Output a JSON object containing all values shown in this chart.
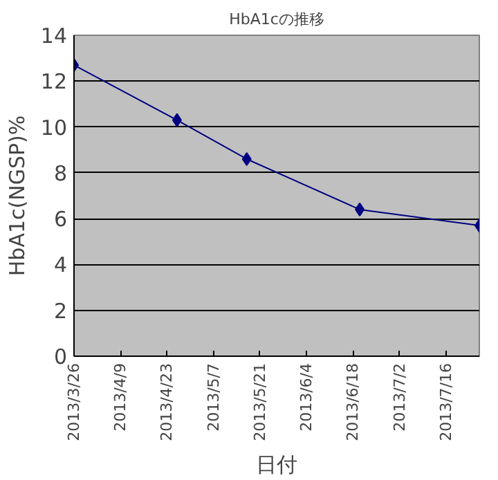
{
  "chart_data": {
    "type": "line",
    "title": "HbA1cの推移",
    "xlabel": "日付",
    "ylabel": "HbA1c(NGSP)%",
    "x": [
      "2013-03-26",
      "2013-04-26",
      "2013-05-17",
      "2013-06-20",
      "2013-07-26"
    ],
    "series": [
      {
        "color": "#000080",
        "values": [
          12.7,
          10.3,
          8.6,
          6.4,
          5.7
        ]
      }
    ],
    "xlim": [
      "2013-03-26",
      "2013-07-26"
    ],
    "xticks": [
      {
        "value": "2013-03-26",
        "label": "2013/3/26"
      },
      {
        "value": "2013-04-09",
        "label": "2013/4/9"
      },
      {
        "value": "2013-04-23",
        "label": "2013/4/23"
      },
      {
        "value": "2013-05-07",
        "label": "2013/5/7"
      },
      {
        "value": "2013-05-21",
        "label": "2013/5/21"
      },
      {
        "value": "2013-06-04",
        "label": "2013/6/4"
      },
      {
        "value": "2013-06-18",
        "label": "2013/6/18"
      },
      {
        "value": "2013-07-02",
        "label": "2013/7/2"
      },
      {
        "value": "2013-07-16",
        "label": "2013/7/16"
      }
    ],
    "ylim": [
      0,
      14
    ],
    "yticks": [
      0,
      2,
      4,
      6,
      8,
      10,
      12,
      14
    ],
    "grid": "y",
    "marker": "diamond",
    "line_style": "solid"
  }
}
